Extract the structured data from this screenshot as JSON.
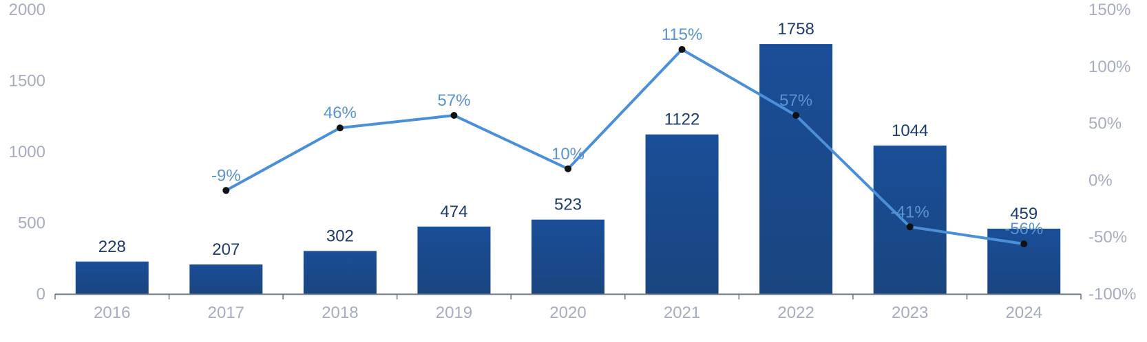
{
  "chart_data": {
    "type": "bar",
    "categories": [
      "2016",
      "2017",
      "2018",
      "2019",
      "2020",
      "2021",
      "2022",
      "2023",
      "2024"
    ],
    "series": [
      {
        "type": "bar",
        "axis": "left",
        "values": [
          228,
          207,
          302,
          474,
          523,
          1122,
          1758,
          1044,
          459
        ],
        "labels": [
          "228",
          "207",
          "302",
          "474",
          "523",
          "1122",
          "1758",
          "1044",
          "459"
        ]
      },
      {
        "type": "line",
        "axis": "right",
        "values": [
          null,
          -9,
          46,
          57,
          10,
          115,
          57,
          -41,
          -56
        ],
        "labels": [
          "",
          "-9%",
          "46%",
          "57%",
          "10%",
          "115%",
          "57%",
          "-41%",
          "-56%"
        ]
      }
    ],
    "y_left": {
      "range": [
        0,
        2000
      ],
      "ticks": [
        "0",
        "500",
        "1000",
        "1500",
        "2000"
      ]
    },
    "y_right": {
      "range": [
        -100,
        150
      ],
      "ticks": [
        "-100%",
        "-50%",
        "0%",
        "50%",
        "100%",
        "150%"
      ]
    },
    "title": "",
    "xlabel": "",
    "ylabel": "",
    "grid": false,
    "legend": "none",
    "colors": {
      "bar": "#1a4a8e",
      "line": "#4a8fd8",
      "marker": "#111111",
      "bar_label": "#1d3b6b",
      "line_label": "#5a93d1",
      "tick": "#a7acc0",
      "axis": "#6b7385"
    }
  }
}
